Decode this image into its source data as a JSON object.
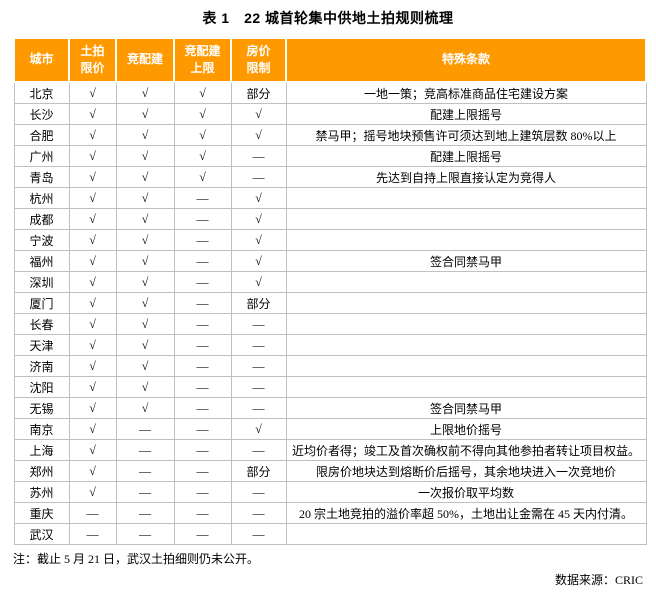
{
  "title": "表 1　22 城首轮集中供地土拍规则梳理",
  "table": {
    "headers": [
      "城市",
      "土拍\n限价",
      "竞配建",
      "竞配建\n上限",
      "房价\n限制",
      "特殊条款"
    ],
    "check_symbol": "√",
    "dash_symbol": "—",
    "rows": [
      {
        "city": "北京",
        "marks": [
          "√",
          "√",
          "√",
          "部分"
        ],
        "clause": "一地一策；竞高标准商品住宅建设方案"
      },
      {
        "city": "长沙",
        "marks": [
          "√",
          "√",
          "√",
          "√"
        ],
        "clause": "配建上限摇号"
      },
      {
        "city": "合肥",
        "marks": [
          "√",
          "√",
          "√",
          "√"
        ],
        "clause": "禁马甲；摇号地块预售许可须达到地上建筑层数 80%以上"
      },
      {
        "city": "广州",
        "marks": [
          "√",
          "√",
          "√",
          "—"
        ],
        "clause": "配建上限摇号"
      },
      {
        "city": "青岛",
        "marks": [
          "√",
          "√",
          "√",
          "—"
        ],
        "clause": "先达到自持上限直接认定为竞得人"
      },
      {
        "city": "杭州",
        "marks": [
          "√",
          "√",
          "—",
          "√"
        ],
        "clause": ""
      },
      {
        "city": "成都",
        "marks": [
          "√",
          "√",
          "—",
          "√"
        ],
        "clause": ""
      },
      {
        "city": "宁波",
        "marks": [
          "√",
          "√",
          "—",
          "√"
        ],
        "clause": ""
      },
      {
        "city": "福州",
        "marks": [
          "√",
          "√",
          "—",
          "√"
        ],
        "clause": "签合同禁马甲"
      },
      {
        "city": "深圳",
        "marks": [
          "√",
          "√",
          "—",
          "√"
        ],
        "clause": ""
      },
      {
        "city": "厦门",
        "marks": [
          "√",
          "√",
          "—",
          "部分"
        ],
        "clause": ""
      },
      {
        "city": "长春",
        "marks": [
          "√",
          "√",
          "—",
          "—"
        ],
        "clause": ""
      },
      {
        "city": "天津",
        "marks": [
          "√",
          "√",
          "—",
          "—"
        ],
        "clause": ""
      },
      {
        "city": "济南",
        "marks": [
          "√",
          "√",
          "—",
          "—"
        ],
        "clause": ""
      },
      {
        "city": "沈阳",
        "marks": [
          "√",
          "√",
          "—",
          "—"
        ],
        "clause": ""
      },
      {
        "city": "无锡",
        "marks": [
          "√",
          "√",
          "—",
          "—"
        ],
        "clause": "签合同禁马甲"
      },
      {
        "city": "南京",
        "marks": [
          "√",
          "—",
          "—",
          "√"
        ],
        "clause": "上限地价摇号"
      },
      {
        "city": "上海",
        "marks": [
          "√",
          "—",
          "—",
          "—"
        ],
        "clause": "近均价者得；竣工及首次确权前不得向其他参拍者转让项目权益。"
      },
      {
        "city": "郑州",
        "marks": [
          "√",
          "—",
          "—",
          "部分"
        ],
        "clause": "限房价地块达到熔断价后摇号，其余地块进入一次竞地价"
      },
      {
        "city": "苏州",
        "marks": [
          "√",
          "—",
          "—",
          "—"
        ],
        "clause": "一次报价取平均数"
      },
      {
        "city": "重庆",
        "marks": [
          "—",
          "—",
          "—",
          "—"
        ],
        "clause": "20 宗土地竞拍的溢价率超 50%，土地出让金需在 45 天内付清。"
      },
      {
        "city": "武汉",
        "marks": [
          "—",
          "—",
          "—",
          "—"
        ],
        "clause": ""
      }
    ]
  },
  "note": "注：截止 5 月 21 日，武汉土拍细则仍未公开。",
  "source": "数据来源：CRIC",
  "colors": {
    "header_bg": "#FF9900",
    "header_text": "#FFFFFF",
    "border": "#C0C0C0",
    "text": "#000000"
  }
}
